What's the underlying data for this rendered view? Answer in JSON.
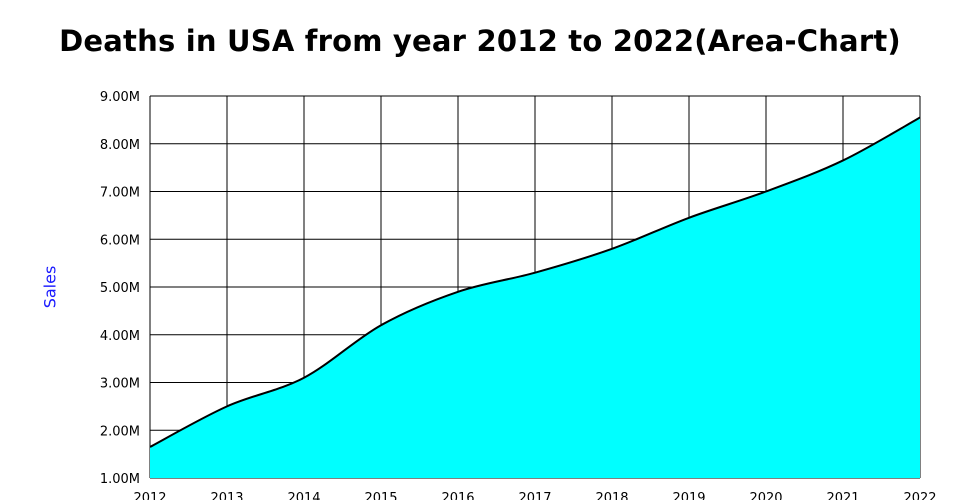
{
  "chart_data": {
    "type": "area",
    "title": "Deaths in USA from year 2012 to 2022(Area-Chart)",
    "xlabel": "",
    "ylabel": "Sales",
    "x": [
      "2012",
      "2013",
      "2014",
      "2015",
      "2016",
      "2017",
      "2018",
      "2019",
      "2020",
      "2021",
      "2022"
    ],
    "ylim": [
      1000000,
      9000000
    ],
    "yticks": [
      "1.00M",
      "2.00M",
      "3.00M",
      "4.00M",
      "5.00M",
      "6.00M",
      "7.00M",
      "8.00M",
      "9.00M"
    ],
    "grid": true,
    "series": [
      {
        "values": [
          1650000,
          2500000,
          3100000,
          4200000,
          4900000,
          5300000,
          5800000,
          6450000,
          7000000,
          7650000,
          8550000
        ]
      }
    ],
    "colors": {
      "fill": "#00ffff",
      "line": "#000000",
      "grid": "#000000",
      "ylabel": "#1a1aff"
    }
  }
}
